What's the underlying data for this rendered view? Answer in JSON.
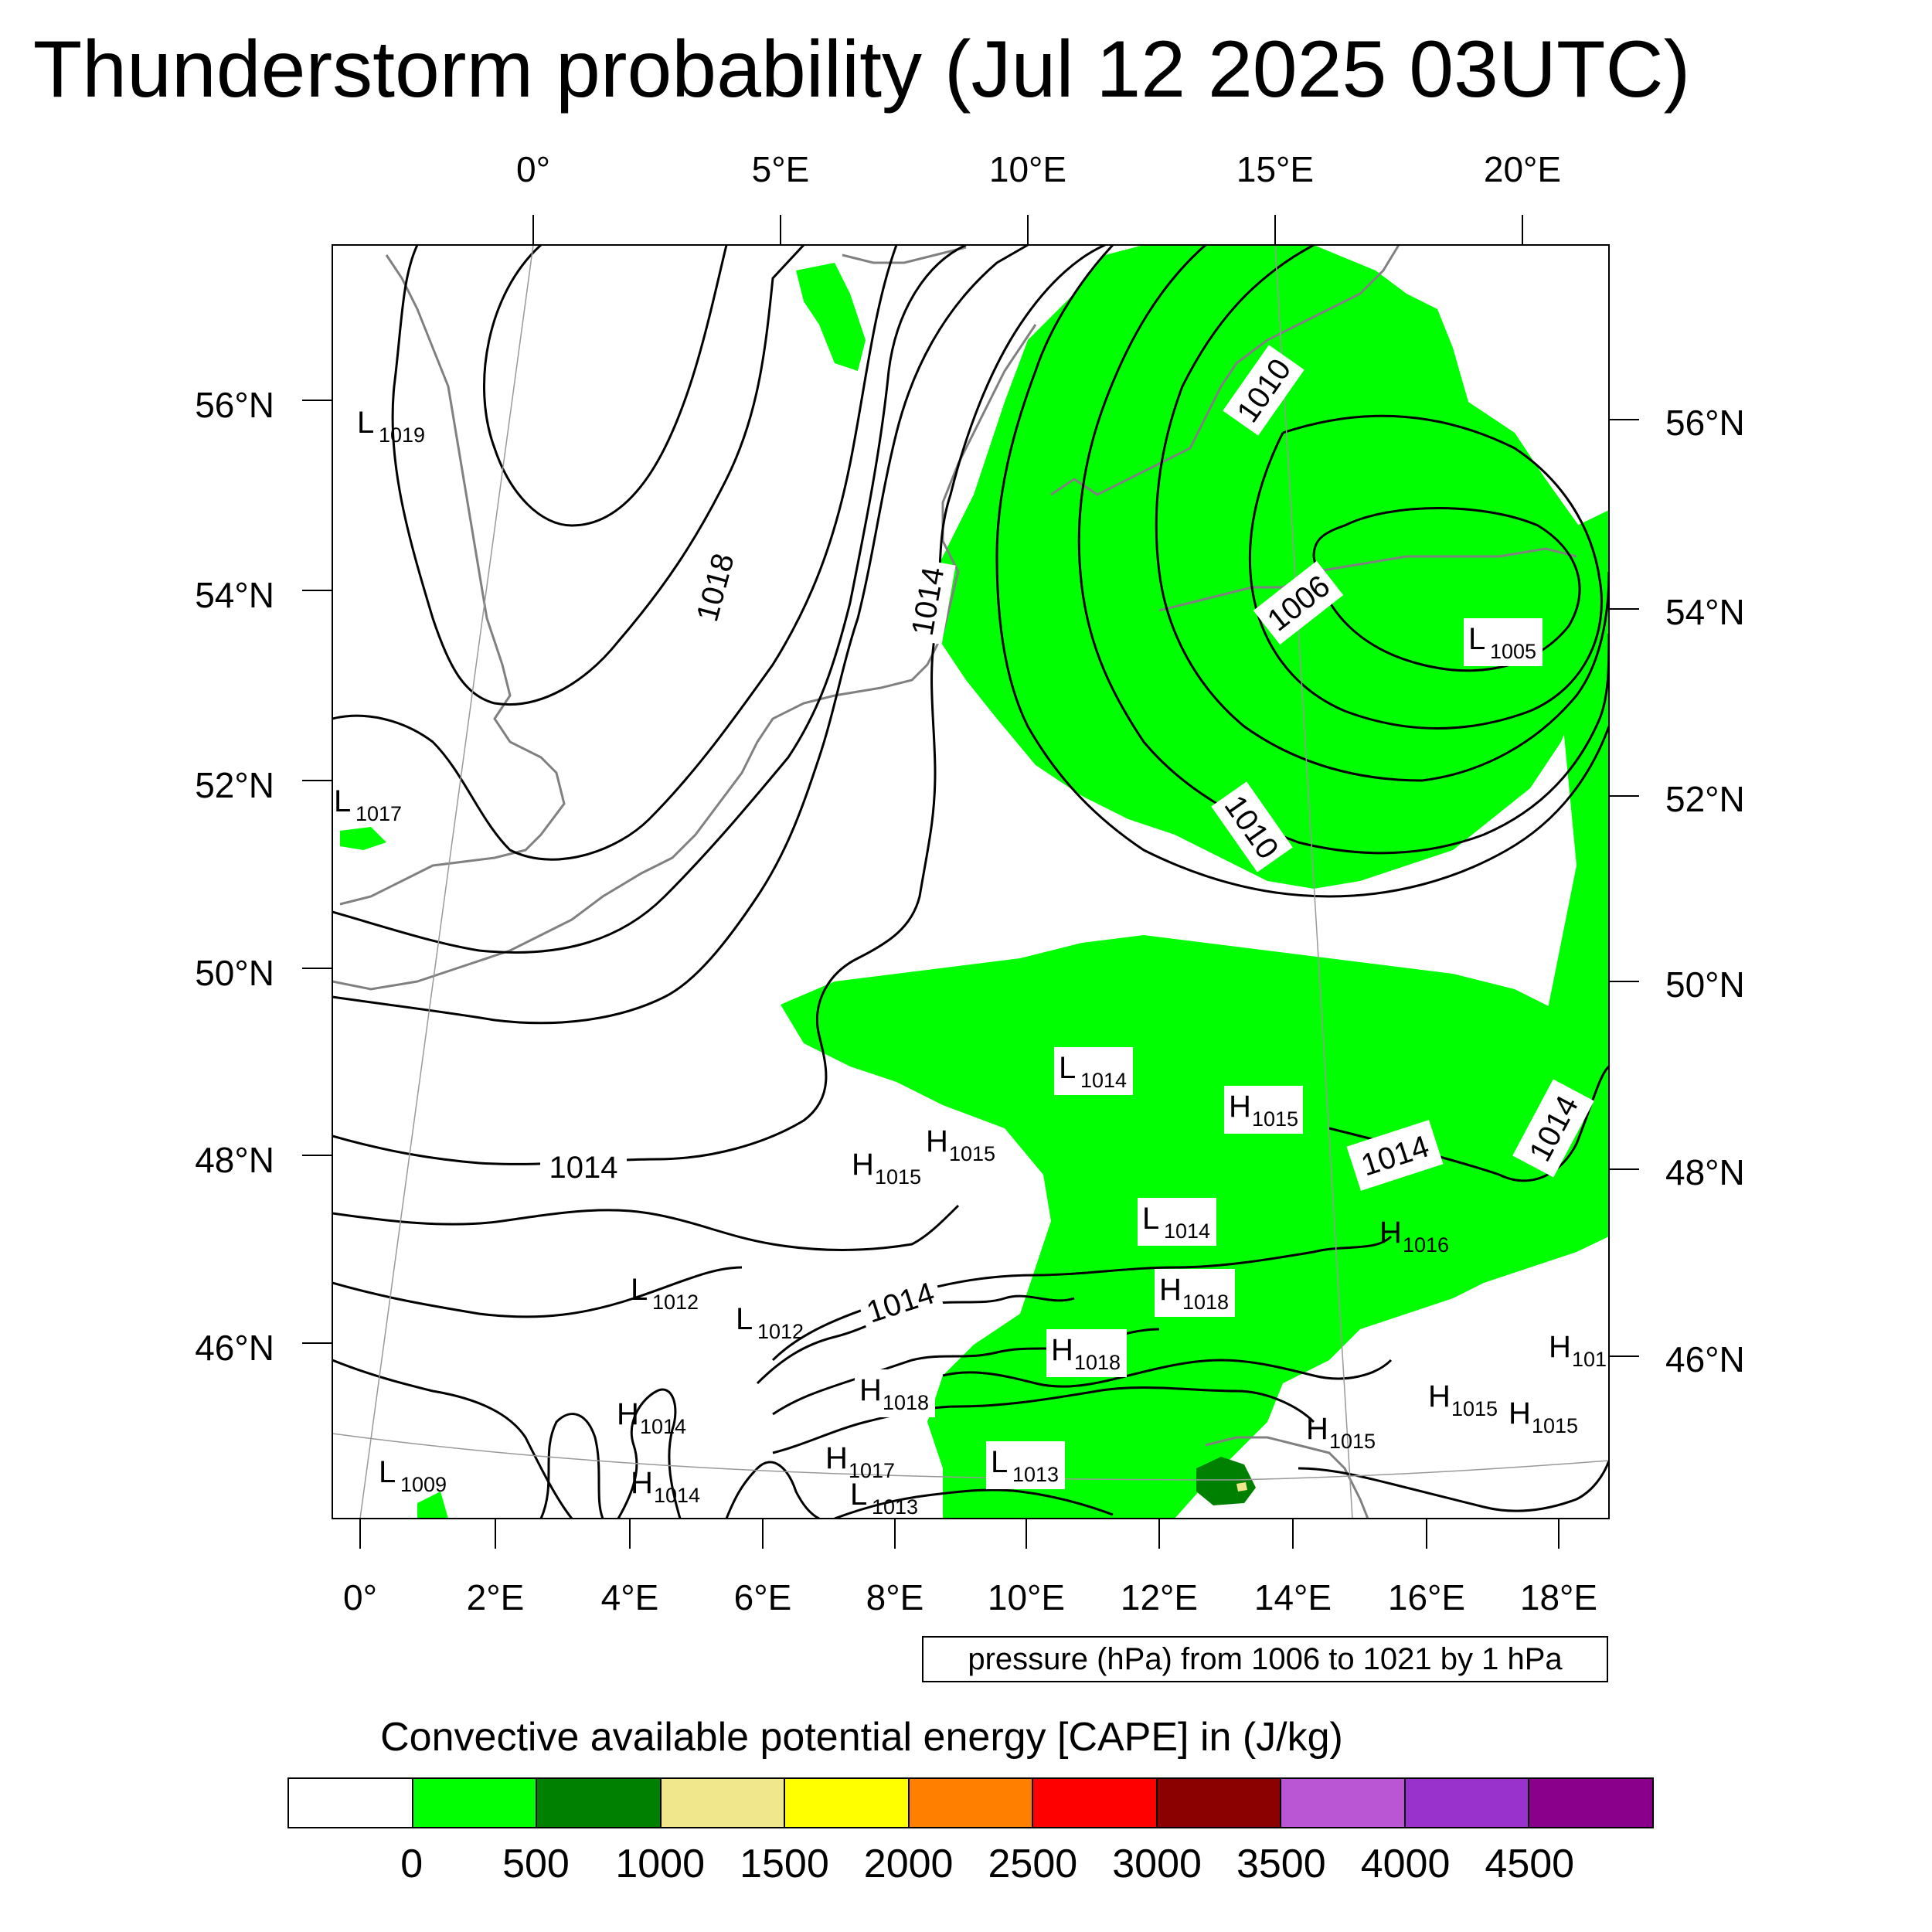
{
  "title": "Thunderstorm probability (Jul 12 2025 03UTC)",
  "map": {
    "top_lon_labels": [
      "0°",
      "5°E",
      "10°E",
      "15°E",
      "20°E"
    ],
    "left_lat_labels": [
      "56°N",
      "54°N",
      "52°N",
      "50°N",
      "48°N",
      "46°N"
    ],
    "right_lat_labels": [
      "56°N",
      "54°N",
      "52°N",
      "50°N",
      "48°N",
      "46°N"
    ],
    "bottom_lon_labels": [
      "0°",
      "2°E",
      "4°E",
      "6°E",
      "8°E",
      "10°E",
      "12°E",
      "14°E",
      "16°E",
      "18°E"
    ],
    "isobar_labels": [
      "1018",
      "1014",
      "1010",
      "1006",
      "1010",
      "1014",
      "1014",
      "1014",
      "1014"
    ],
    "pressure_centers": [
      {
        "type": "L",
        "value": "1019"
      },
      {
        "type": "L",
        "value": "1017"
      },
      {
        "type": "L",
        "value": "1005"
      },
      {
        "type": "L",
        "value": "1014"
      },
      {
        "type": "H",
        "value": "1015"
      },
      {
        "type": "H",
        "value": "1015"
      },
      {
        "type": "H",
        "value": "1015"
      },
      {
        "type": "L",
        "value": "1014"
      },
      {
        "type": "H",
        "value": "1016"
      },
      {
        "type": "L",
        "value": "1012"
      },
      {
        "type": "L",
        "value": "1012"
      },
      {
        "type": "H",
        "value": "1018"
      },
      {
        "type": "H",
        "value": "1018"
      },
      {
        "type": "H",
        "value": "1018"
      },
      {
        "type": "H",
        "value": "1014"
      },
      {
        "type": "H",
        "value": "1017"
      },
      {
        "type": "L",
        "value": "1013"
      },
      {
        "type": "L",
        "value": "1013"
      },
      {
        "type": "H",
        "value": "1014"
      },
      {
        "type": "L",
        "value": "1009"
      },
      {
        "type": "H",
        "value": "1015"
      },
      {
        "type": "H",
        "value": "1015"
      },
      {
        "type": "H",
        "value": "1015"
      },
      {
        "type": "H",
        "value": "101"
      }
    ]
  },
  "pressure_note": "pressure (hPa) from 1006 to 1021 by 1 hPa",
  "colorbar": {
    "title": "Convective available potential energy [CAPE] in (J/kg)",
    "colors": [
      "#ffffff",
      "#00ff00",
      "#008000",
      "#f0e68c",
      "#ffff00",
      "#ff8000",
      "#ff0000",
      "#8b0000",
      "#ba55d3",
      "#9932cc",
      "#8b008b"
    ],
    "labels": [
      "0",
      "500",
      "1000",
      "1500",
      "2000",
      "2500",
      "3000",
      "3500",
      "4000",
      "4500"
    ]
  },
  "colors": {
    "cape_low": "#00ff00",
    "cape_mid": "#008000",
    "coastline": "#808080",
    "isobar": "#000000"
  }
}
